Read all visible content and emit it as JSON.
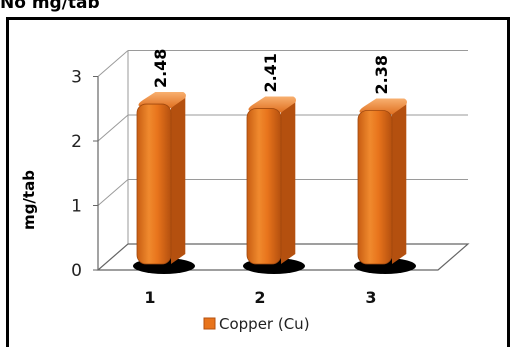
{
  "header": {
    "text": "No mg/tab"
  },
  "colors": {
    "bar_front": "#e8741c",
    "bar_highlight": "#f5a050",
    "bar_dark": "#b4500f",
    "floor": "#ffffff",
    "grid": "#9a9a9a"
  },
  "chart_data": {
    "type": "bar",
    "categories": [
      "1",
      "2",
      "3"
    ],
    "series": [
      {
        "name": "Copper (Cu)",
        "values": [
          2.48,
          2.41,
          2.38
        ]
      }
    ],
    "ylabel": "mg/tab",
    "xlabel": "",
    "ylim": [
      0,
      3
    ],
    "yticks": [
      "0",
      "1",
      "2",
      "3"
    ],
    "data_labels": [
      "2.48",
      "2.41",
      "2.38"
    ],
    "style": "3d",
    "grid": true,
    "legend": "bottom"
  }
}
